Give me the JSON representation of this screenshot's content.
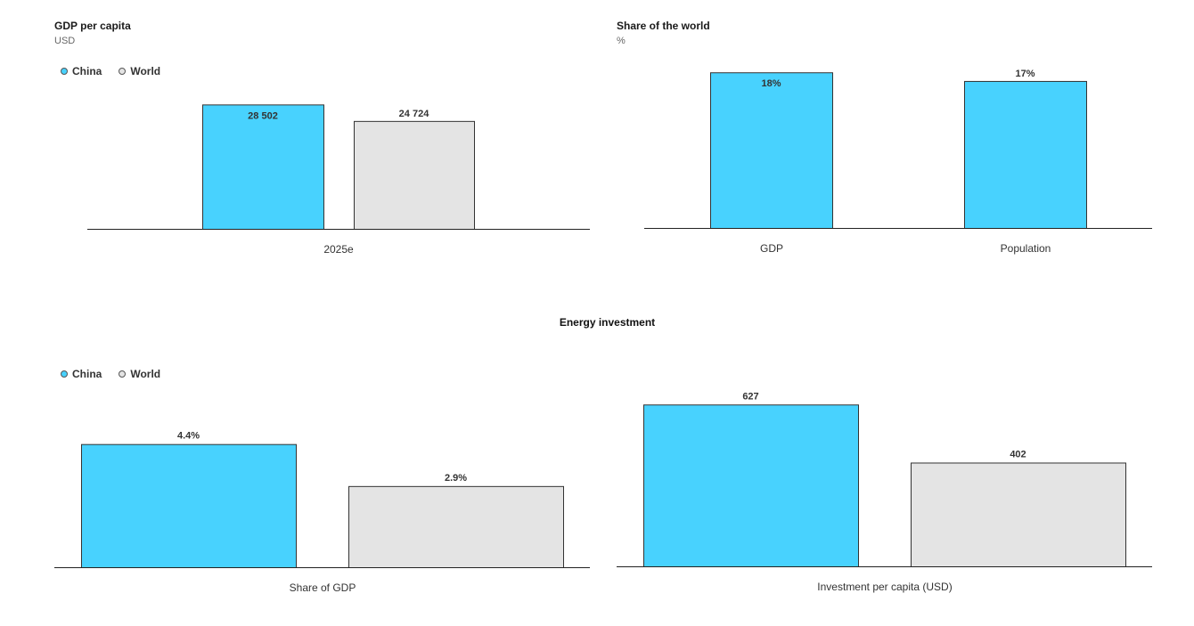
{
  "colors": {
    "china": "#48d2fe",
    "world": "#e4e4e4",
    "border": "#333333",
    "axis": "#222222"
  },
  "legend": {
    "china": "China",
    "world": "World"
  },
  "section_title": "Energy investment",
  "chart_data": [
    {
      "id": "gdp-per-capita",
      "type": "bar",
      "title": "GDP per capita",
      "subtitle": "USD",
      "categories": [
        "2025e"
      ],
      "series": [
        {
          "name": "China",
          "values": [
            28502
          ],
          "labels": [
            "28 502"
          ]
        },
        {
          "name": "World",
          "values": [
            24724
          ],
          "labels": [
            "24 724"
          ]
        }
      ],
      "ylim": [
        0,
        30000
      ],
      "grid": false,
      "legend": "top-left"
    },
    {
      "id": "share-of-world",
      "type": "bar",
      "title": "Share of the world",
      "subtitle": "%",
      "categories": [
        "GDP",
        "Population"
      ],
      "series": [
        {
          "name": "China",
          "values": [
            18,
            17
          ],
          "labels": [
            "18%",
            "17%"
          ]
        }
      ],
      "ylim": [
        0,
        18.6
      ],
      "grid": false
    },
    {
      "id": "share-of-gdp",
      "type": "bar",
      "title": "Energy investment",
      "categories": [
        "Share of GDP"
      ],
      "series": [
        {
          "name": "China",
          "values": [
            4.4
          ],
          "labels": [
            "4.4%"
          ]
        },
        {
          "name": "World",
          "values": [
            2.9
          ],
          "labels": [
            "2.9%"
          ]
        }
      ],
      "ylim": [
        0,
        5.3
      ],
      "grid": false,
      "legend": "top-left"
    },
    {
      "id": "investment-per-capita",
      "type": "bar",
      "title": "Energy investment",
      "categories": [
        "Investment per capita (USD)"
      ],
      "series": [
        {
          "name": "China",
          "values": [
            627
          ],
          "labels": [
            "627"
          ]
        },
        {
          "name": "World",
          "values": [
            402
          ],
          "labels": [
            "402"
          ]
        }
      ],
      "ylim": [
        0,
        690
      ],
      "grid": false
    }
  ]
}
